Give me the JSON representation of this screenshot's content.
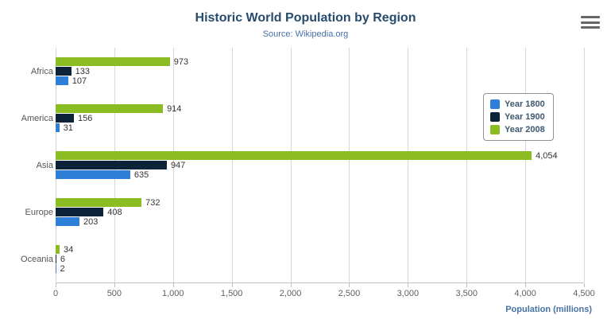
{
  "header": {
    "title": "Historic World Population by Region",
    "subtitle": "Source: Wikipedia.org"
  },
  "export_menu": {
    "icon": "hamburger-menu-icon"
  },
  "chart_data": {
    "type": "bar",
    "orientation": "horizontal",
    "title": "Historic World Population by Region",
    "subtitle": "Source: Wikipedia.org",
    "categories": [
      "Africa",
      "America",
      "Asia",
      "Europe",
      "Oceania"
    ],
    "series": [
      {
        "name": "Year 1800",
        "color": "#2f7ed8",
        "values": [
          107,
          31,
          635,
          203,
          2
        ]
      },
      {
        "name": "Year 1900",
        "color": "#0d233a",
        "values": [
          133,
          156,
          947,
          408,
          6
        ]
      },
      {
        "name": "Year 2008",
        "color": "#8bbc21",
        "values": [
          973,
          914,
          4054,
          732,
          34
        ]
      }
    ],
    "series_display_order_top_to_bottom": [
      "Year 2008",
      "Year 1900",
      "Year 1800"
    ],
    "xlabel": "Population (millions)",
    "ylabel": "",
    "xlim": [
      0,
      4500
    ],
    "x_tick_values": [
      0,
      500,
      1000,
      1500,
      2000,
      2500,
      3000,
      3500,
      4000,
      4500
    ],
    "x_tick_labels": [
      "0",
      "500",
      "1,000",
      "1,500",
      "2,000",
      "2,500",
      "3,000",
      "3,500",
      "4,000",
      "4,500"
    ],
    "grid": true,
    "legend_position": "right-float",
    "data_labels": true,
    "data_label_format": "thousands-separated"
  },
  "colors": {
    "title": "#274b6d",
    "subtitle": "#4572A7",
    "gridline": "#d8d8d8",
    "axis_line": "#c0c0c0",
    "tick_label": "#606060",
    "axis_title": "#4572A7"
  }
}
